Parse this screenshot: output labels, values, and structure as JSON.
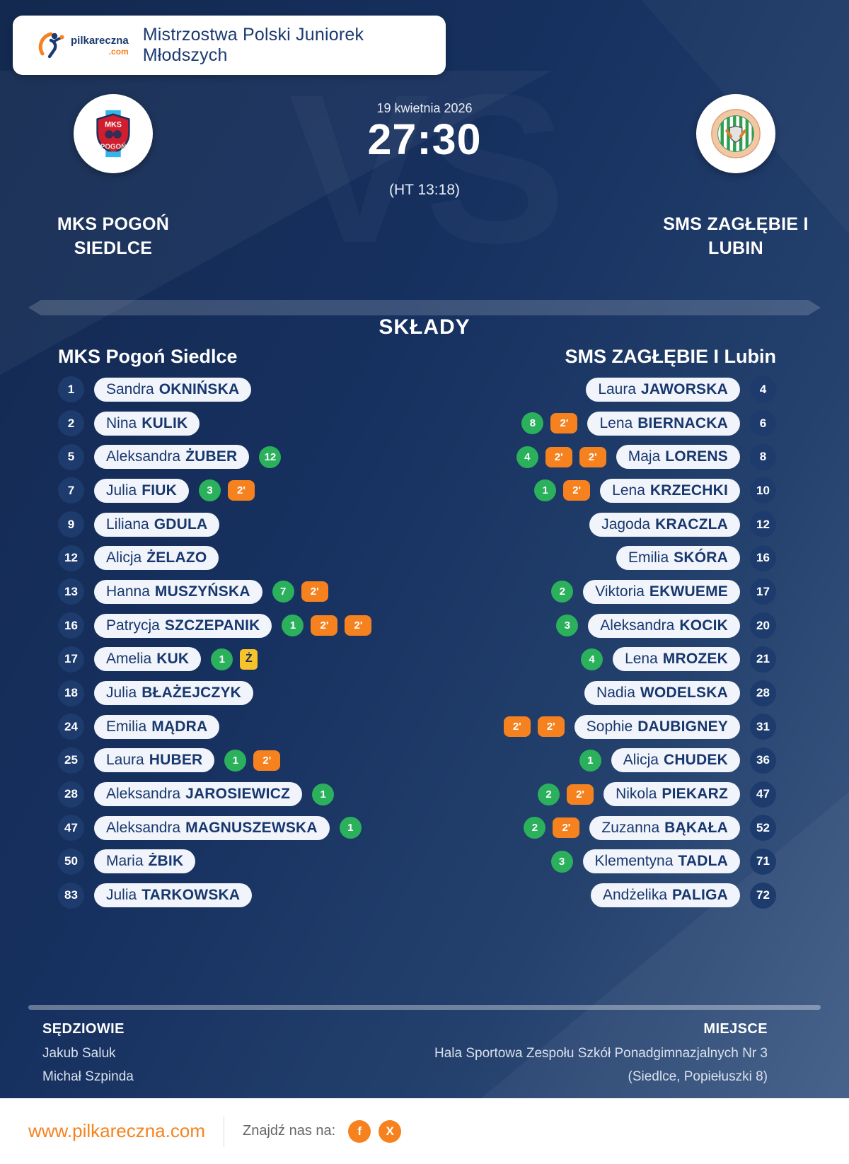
{
  "header": {
    "title": "Mistrzostwa Polski Juniorek Młodszych",
    "logo": {
      "name": "pilkareczna",
      "tld": ".com"
    }
  },
  "match": {
    "date": "19 kwietnia 2026",
    "score": "27:30",
    "halftime": "(HT 13:18)",
    "vs": "VS",
    "home": {
      "line1": "MKS POGOŃ",
      "line2": "SIEDLCE"
    },
    "away": {
      "line1": "SMS ZAGŁĘBIE I",
      "line2": "LUBIN"
    }
  },
  "lineups": {
    "heading": "SKŁADY",
    "home_header": "MKS Pogoń Siedlce",
    "away_header": "SMS ZAGŁĘBIE I Lubin",
    "home_players": [
      {
        "number": "1",
        "first": "Sandra",
        "last": "OKNIŃSKA",
        "badges": []
      },
      {
        "number": "2",
        "first": "Nina",
        "last": "KULIK",
        "badges": []
      },
      {
        "number": "5",
        "first": "Aleksandra",
        "last": "ŻUBER",
        "badges": [
          {
            "type": "goals",
            "label": "12"
          }
        ]
      },
      {
        "number": "7",
        "first": "Julia",
        "last": "FIUK",
        "badges": [
          {
            "type": "goals",
            "label": "3"
          },
          {
            "type": "suspension",
            "label": "2'"
          }
        ]
      },
      {
        "number": "9",
        "first": "Liliana",
        "last": "GDULA",
        "badges": []
      },
      {
        "number": "12",
        "first": "Alicja",
        "last": "ŻELAZO",
        "badges": []
      },
      {
        "number": "13",
        "first": "Hanna",
        "last": "MUSZYŃSKA",
        "badges": [
          {
            "type": "goals",
            "label": "7"
          },
          {
            "type": "suspension",
            "label": "2'"
          }
        ]
      },
      {
        "number": "16",
        "first": "Patrycja",
        "last": "SZCZEPANIK",
        "badges": [
          {
            "type": "goals",
            "label": "1"
          },
          {
            "type": "suspension",
            "label": "2'"
          },
          {
            "type": "suspension",
            "label": "2'"
          }
        ]
      },
      {
        "number": "17",
        "first": "Amelia",
        "last": "KUK",
        "badges": [
          {
            "type": "goals",
            "label": "1"
          },
          {
            "type": "yellow",
            "label": "Ż"
          }
        ]
      },
      {
        "number": "18",
        "first": "Julia",
        "last": "BŁAŻEJCZYK",
        "badges": []
      },
      {
        "number": "24",
        "first": "Emilia",
        "last": "MĄDRA",
        "badges": []
      },
      {
        "number": "25",
        "first": "Laura",
        "last": "HUBER",
        "badges": [
          {
            "type": "goals",
            "label": "1"
          },
          {
            "type": "suspension",
            "label": "2'"
          }
        ]
      },
      {
        "number": "28",
        "first": "Aleksandra",
        "last": "JAROSIEWICZ",
        "badges": [
          {
            "type": "goals",
            "label": "1"
          }
        ]
      },
      {
        "number": "47",
        "first": "Aleksandra",
        "last": "MAGNUSZEWSKA",
        "badges": [
          {
            "type": "goals",
            "label": "1"
          }
        ]
      },
      {
        "number": "50",
        "first": "Maria",
        "last": "ŻBIK",
        "badges": []
      },
      {
        "number": "83",
        "first": "Julia",
        "last": "TARKOWSKA",
        "badges": []
      }
    ],
    "away_players": [
      {
        "number": "4",
        "first": "Laura",
        "last": "JAWORSKA",
        "badges": []
      },
      {
        "number": "6",
        "first": "Lena",
        "last": "BIERNACKA",
        "badges": [
          {
            "type": "goals",
            "label": "8"
          },
          {
            "type": "suspension",
            "label": "2'"
          }
        ]
      },
      {
        "number": "8",
        "first": "Maja",
        "last": "LORENS",
        "badges": [
          {
            "type": "goals",
            "label": "4"
          },
          {
            "type": "suspension",
            "label": "2'"
          },
          {
            "type": "suspension",
            "label": "2'"
          }
        ]
      },
      {
        "number": "10",
        "first": "Lena",
        "last": "KRZECHKI",
        "badges": [
          {
            "type": "goals",
            "label": "1"
          },
          {
            "type": "suspension",
            "label": "2'"
          }
        ]
      },
      {
        "number": "12",
        "first": "Jagoda",
        "last": "KRACZLA",
        "badges": []
      },
      {
        "number": "16",
        "first": "Emilia",
        "last": "SKÓRA",
        "badges": []
      },
      {
        "number": "17",
        "first": "Viktoria",
        "last": "EKWUEME",
        "badges": [
          {
            "type": "goals",
            "label": "2"
          }
        ]
      },
      {
        "number": "20",
        "first": "Aleksandra",
        "last": "KOCIK",
        "badges": [
          {
            "type": "goals",
            "label": "3"
          }
        ]
      },
      {
        "number": "21",
        "first": "Lena",
        "last": "MROZEK",
        "badges": [
          {
            "type": "goals",
            "label": "4"
          }
        ]
      },
      {
        "number": "28",
        "first": "Nadia",
        "last": "WODELSKA",
        "badges": []
      },
      {
        "number": "31",
        "first": "Sophie",
        "last": "DAUBIGNEY",
        "badges": [
          {
            "type": "suspension",
            "label": "2'"
          },
          {
            "type": "suspension",
            "label": "2'"
          }
        ]
      },
      {
        "number": "36",
        "first": "Alicja",
        "last": "CHUDEK",
        "badges": [
          {
            "type": "goals",
            "label": "1"
          }
        ]
      },
      {
        "number": "47",
        "first": "Nikola",
        "last": "PIEKARZ",
        "badges": [
          {
            "type": "goals",
            "label": "2"
          },
          {
            "type": "suspension",
            "label": "2'"
          }
        ]
      },
      {
        "number": "52",
        "first": "Zuzanna",
        "last": "BĄKAŁA",
        "badges": [
          {
            "type": "goals",
            "label": "2"
          },
          {
            "type": "suspension",
            "label": "2'"
          }
        ]
      },
      {
        "number": "71",
        "first": "Klementyna",
        "last": "TADLA",
        "badges": [
          {
            "type": "goals",
            "label": "3"
          }
        ]
      },
      {
        "number": "72",
        "first": "Andżelika",
        "last": "PALIGA",
        "badges": []
      }
    ]
  },
  "info": {
    "referees_label": "SĘDZIOWIE",
    "referees": [
      "Jakub Saluk",
      "Michał Szpinda"
    ],
    "venue_label": "MIEJSCE",
    "venue_lines": [
      "Hala Sportowa Zespołu Szkół Ponadgimnazjalnych Nr 3",
      "(Siedlce, Popiełuszki 8)"
    ]
  },
  "footer": {
    "website": "www.pilkareczna.com",
    "find_us": "Znajdź nas na:",
    "socials": [
      {
        "name": "facebook",
        "glyph": "f"
      },
      {
        "name": "x",
        "glyph": "X"
      }
    ]
  },
  "colors": {
    "navy_bg": "#16305f",
    "pill_bg": "#f1f4fa",
    "pill_text": "#17376e",
    "badge_green": "#2bb05c",
    "badge_orange": "#f6821f",
    "badge_yellow": "#f7c32a",
    "accent_orange": "#f6821f"
  }
}
